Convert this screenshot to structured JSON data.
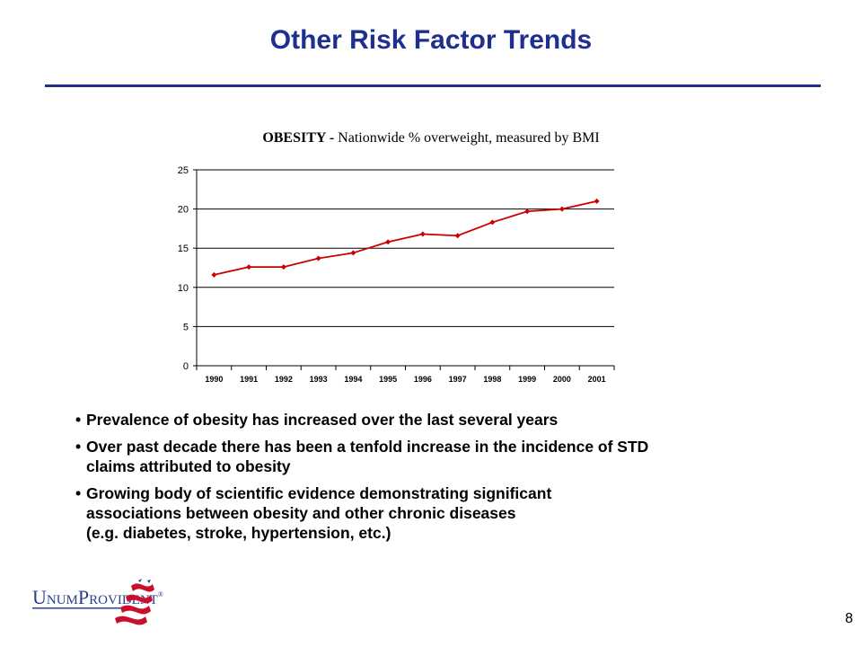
{
  "slide": {
    "title": "Other Risk Factor Trends",
    "page_number": "8"
  },
  "chart_heading": {
    "bold": "OBESITY - ",
    "rest": "Nationwide % overweight, measured by BMI"
  },
  "bullets": [
    "Prevalence of obesity has increased over the last several years",
    "Over past decade there has been a tenfold increase in the incidence of STD\nclaims attributed to obesity",
    "Growing body of scientific evidence demonstrating significant\nassociations between obesity and other chronic diseases\n(e.g. diabetes, stroke, hypertension, etc.)"
  ],
  "logo": {
    "text_u": "U",
    "text_num": "NUM",
    "text_p": "P",
    "text_rovident": "ROVIDENT",
    "mark": "®"
  },
  "colors": {
    "title": "#1f2f8f",
    "series_line": "#cc0000",
    "logo_blue": "#2a3e8c",
    "logo_red": "#c8102e"
  },
  "chart_data": {
    "type": "line",
    "title": "OBESITY - Nationwide % overweight, measured by BMI",
    "categories": [
      "1990",
      "1991",
      "1992",
      "1993",
      "1994",
      "1995",
      "1996",
      "1997",
      "1998",
      "1999",
      "2000",
      "2001"
    ],
    "series": [
      {
        "values": [
          11.6,
          12.6,
          12.6,
          13.7,
          14.4,
          15.8,
          16.8,
          16.6,
          18.3,
          19.7,
          20.0,
          21.0
        ]
      }
    ],
    "yticks": [
      "0",
      "5",
      "10",
      "15",
      "20",
      "25"
    ],
    "ylim": [
      0,
      25
    ],
    "grid": true,
    "legend": "none"
  }
}
